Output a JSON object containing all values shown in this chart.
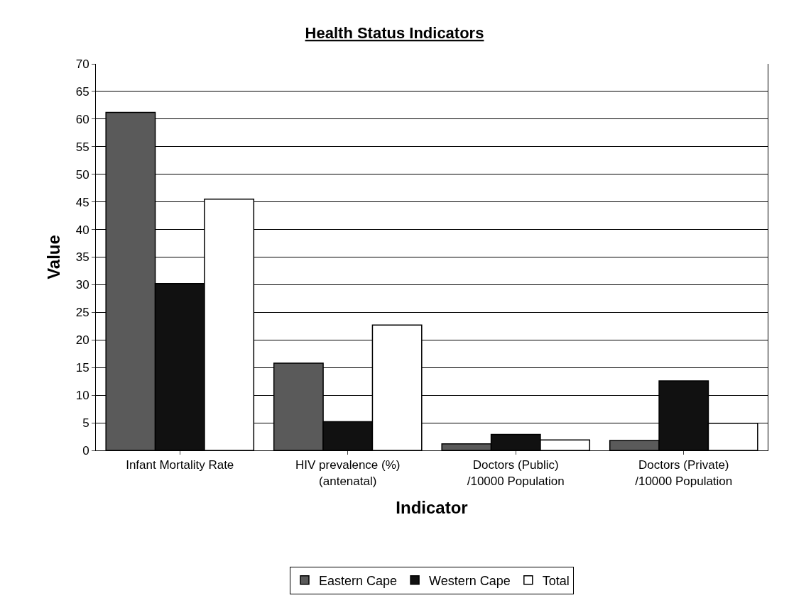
{
  "chart_data": {
    "type": "bar",
    "title": "Health Status Indicators",
    "xlabel": "Indicator",
    "ylabel": "Value",
    "categories": [
      "Infant Mortality Rate",
      "HIV prevalence (%) (antenatal)",
      "Doctors (Public) /10000 Population",
      "Doctors (Private) /10000 Population"
    ],
    "series": [
      {
        "name": "Eastern Cape",
        "color": "#5a5a5a",
        "values": [
          61.2,
          15.8,
          1.2,
          1.8
        ]
      },
      {
        "name": "Western Cape",
        "color": "#111111",
        "values": [
          30.2,
          5.2,
          2.9,
          12.6
        ]
      },
      {
        "name": "Total",
        "color": "#ffffff",
        "values": [
          45.5,
          22.7,
          1.9,
          4.9
        ]
      }
    ],
    "ylim": [
      0,
      70
    ],
    "yticks": [
      0,
      5,
      10,
      15,
      20,
      25,
      30,
      35,
      40,
      45,
      50,
      55,
      60,
      65,
      70
    ],
    "grid": "y",
    "legend": "bottom"
  }
}
